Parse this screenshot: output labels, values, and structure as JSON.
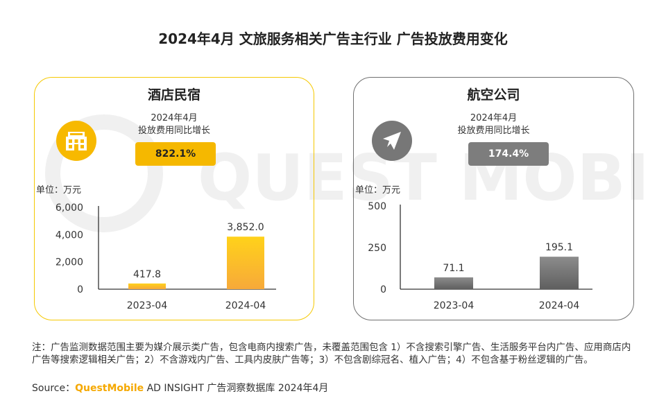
{
  "title": "2024年4月 文旅服务相关广告主行业 广告投放费用变化",
  "watermark": "QUEST MOBILE",
  "colors": {
    "gold": "#f5b800",
    "gold_light": "#ffd21a",
    "gold_dark": "#f7a93a",
    "gray": "#7d7d7d",
    "gray_light": "#8c8c8c",
    "gray_dark": "#5f5f5f"
  },
  "panels": [
    {
      "title": "酒店民宿",
      "icon": "hotel-icon",
      "sub_label_1": "2024年4月",
      "sub_label_2": "投放费用同比增长",
      "growth": "822.1%",
      "unit": "单位：万元"
    },
    {
      "title": "航空公司",
      "icon": "airplane-icon",
      "sub_label_1": "2024年4月",
      "sub_label_2": "投放费用同比增长",
      "growth": "174.4%",
      "unit": "单位：万元"
    }
  ],
  "chart_data": [
    {
      "type": "bar",
      "categories": [
        "2023-04",
        "2024-04"
      ],
      "values": [
        417.8,
        3852.0
      ],
      "value_labels": [
        "417.8",
        "3,852.0"
      ],
      "ylim": [
        0,
        6000
      ],
      "yticks": [
        0,
        2000,
        4000,
        6000
      ],
      "ytick_labels": [
        "0",
        "2,000",
        "4,000",
        "6,000"
      ],
      "ylabel": "单位：万元",
      "title": "酒店民宿"
    },
    {
      "type": "bar",
      "categories": [
        "2023-04",
        "2024-04"
      ],
      "values": [
        71.1,
        195.1
      ],
      "value_labels": [
        "71.1",
        "195.1"
      ],
      "ylim": [
        0,
        500
      ],
      "yticks": [
        0,
        250,
        500
      ],
      "ytick_labels": [
        "0",
        "250",
        "500"
      ],
      "ylabel": "单位：万元",
      "title": "航空公司"
    }
  ],
  "note": "注：广告监测数据范围主要为媒介展示类广告，包含电商内搜索广告，未覆盖范围包含 1）不含搜索引擎广告、生活服务平台内广告、应用商店内广告等搜索逻辑相关广告；2）不含游戏内广告、工具内皮肤广告等；3）不包含剧综冠名、植入广告；4）不包含基于粉丝逻辑的广告。",
  "source": {
    "prefix": "Source：",
    "brand": "QuestMobile",
    "suffix": " AD INSIGHT 广告洞察数据库 2024年4月"
  }
}
